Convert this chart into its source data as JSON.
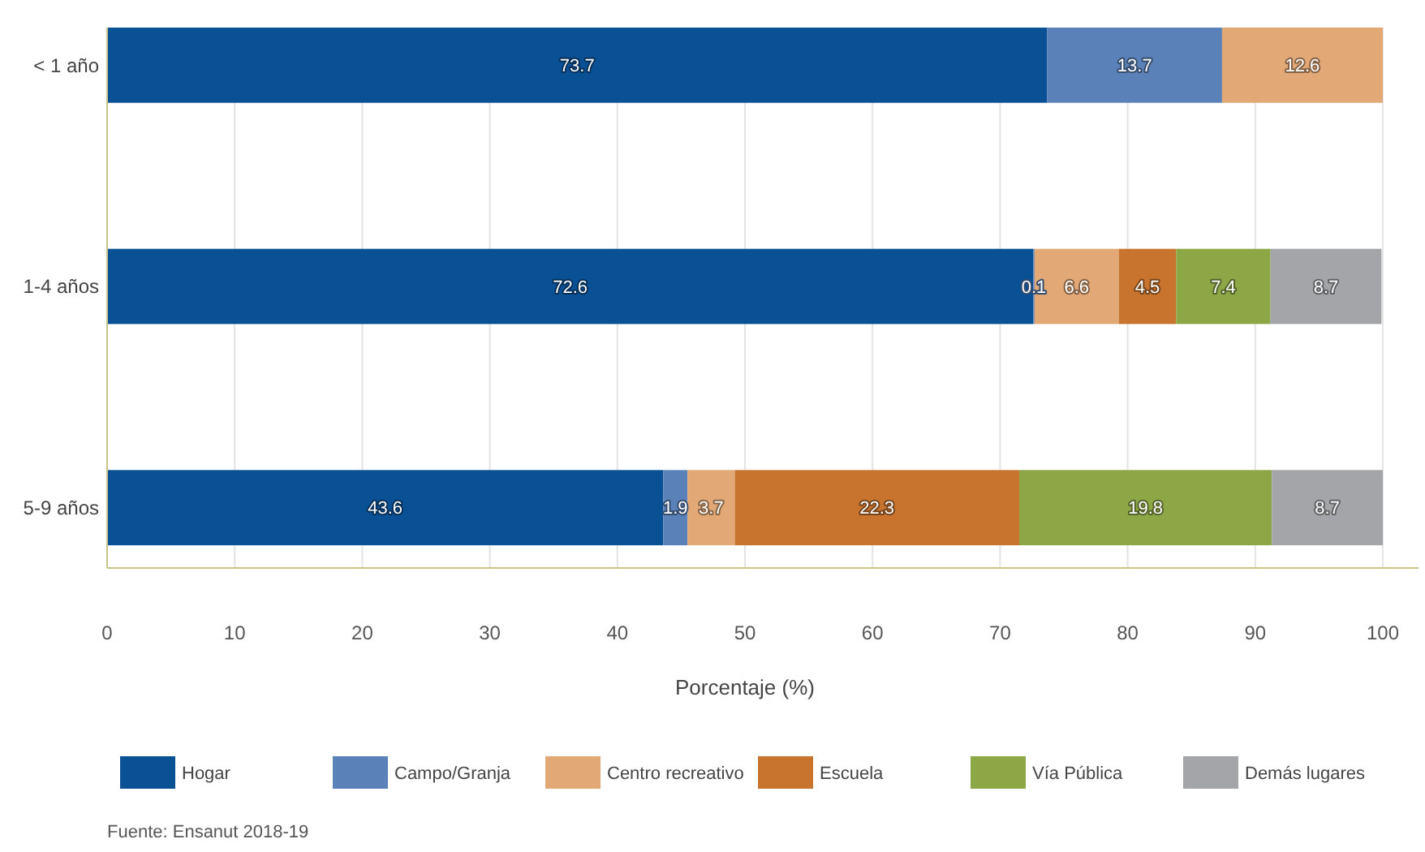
{
  "chart_data": {
    "type": "bar",
    "orientation": "horizontal",
    "stacked": true,
    "xlabel": "Porcentaje (%)",
    "categories": [
      "< 1 año",
      "1-4 años",
      "5-9 años"
    ],
    "series": [
      {
        "name": "Hogar",
        "color": "#0a5094",
        "values": [
          73.7,
          72.6,
          43.6
        ]
      },
      {
        "name": "Campo/Granja",
        "color": "#5b82b8",
        "values": [
          13.7,
          0.1,
          1.9
        ]
      },
      {
        "name": "Centro recreativo",
        "color": "#e2a876",
        "values": [
          12.6,
          6.6,
          3.7
        ]
      },
      {
        "name": "Escuela",
        "color": "#c8742e",
        "values": [
          null,
          4.5,
          22.3
        ]
      },
      {
        "name": "Vía Pública",
        "color": "#8da646",
        "values": [
          null,
          7.4,
          19.8
        ]
      },
      {
        "name": "Demás lugares",
        "color": "#a3a5a8",
        "values": [
          null,
          8.7,
          8.7
        ]
      }
    ],
    "xlim": [
      0,
      100
    ],
    "xticks": [
      0,
      10,
      20,
      30,
      40,
      50,
      60,
      70,
      80,
      90,
      100
    ],
    "grid": "x",
    "legend": "bottom",
    "data_labels": true,
    "annotations": [
      "Fuente: Ensanut 2018-19"
    ]
  }
}
